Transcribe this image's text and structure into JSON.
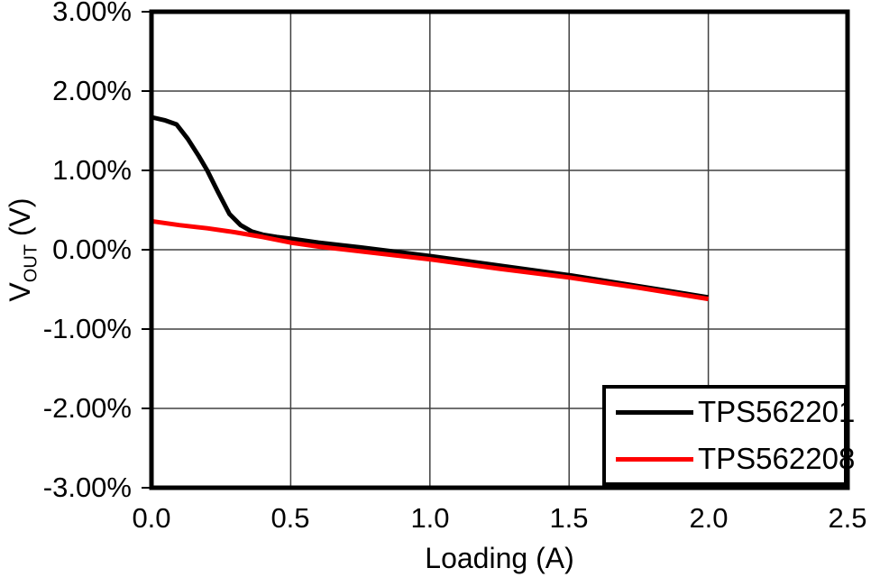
{
  "figure": {
    "background": "#ffffff",
    "axis_color": "#000000",
    "grid_color": "#404040"
  },
  "chart_data": {
    "type": "line",
    "title": "",
    "xlabel": "Loading (A)",
    "ylabel": {
      "main": "V",
      "sub": "OUT",
      "unit": " (V)"
    },
    "xlim": [
      0,
      2.5
    ],
    "ylim": [
      -3,
      3
    ],
    "x_ticks": [
      "0.0",
      "0.5",
      "1.0",
      "1.5",
      "2.0",
      "2.5"
    ],
    "y_ticks": [
      "3.00%",
      "2.00%",
      "1.00%",
      "0.00%",
      "-1.00%",
      "-2.00%",
      "-3.00%"
    ],
    "grid": true,
    "legend_position": "bottom-right",
    "series": [
      {
        "name": "TPS562201",
        "color": "#000000",
        "x": [
          0.0,
          0.05,
          0.09,
          0.13,
          0.17,
          0.2,
          0.24,
          0.28,
          0.32,
          0.36,
          0.4,
          0.45,
          0.5,
          0.6,
          0.75,
          1.0,
          1.25,
          1.5,
          1.75,
          2.0
        ],
        "y": [
          1.67,
          1.63,
          1.58,
          1.4,
          1.18,
          1.0,
          0.72,
          0.45,
          0.31,
          0.23,
          0.19,
          0.16,
          0.14,
          0.09,
          0.03,
          -0.08,
          -0.2,
          -0.32,
          -0.46,
          -0.6
        ]
      },
      {
        "name": "TPS562208",
        "color": "#ff0000",
        "x": [
          0.0,
          0.1,
          0.2,
          0.3,
          0.4,
          0.5,
          0.6,
          0.75,
          1.0,
          1.25,
          1.5,
          1.75,
          2.0
        ],
        "y": [
          0.36,
          0.31,
          0.27,
          0.22,
          0.16,
          0.09,
          0.04,
          -0.02,
          -0.12,
          -0.24,
          -0.35,
          -0.48,
          -0.62
        ]
      }
    ]
  }
}
